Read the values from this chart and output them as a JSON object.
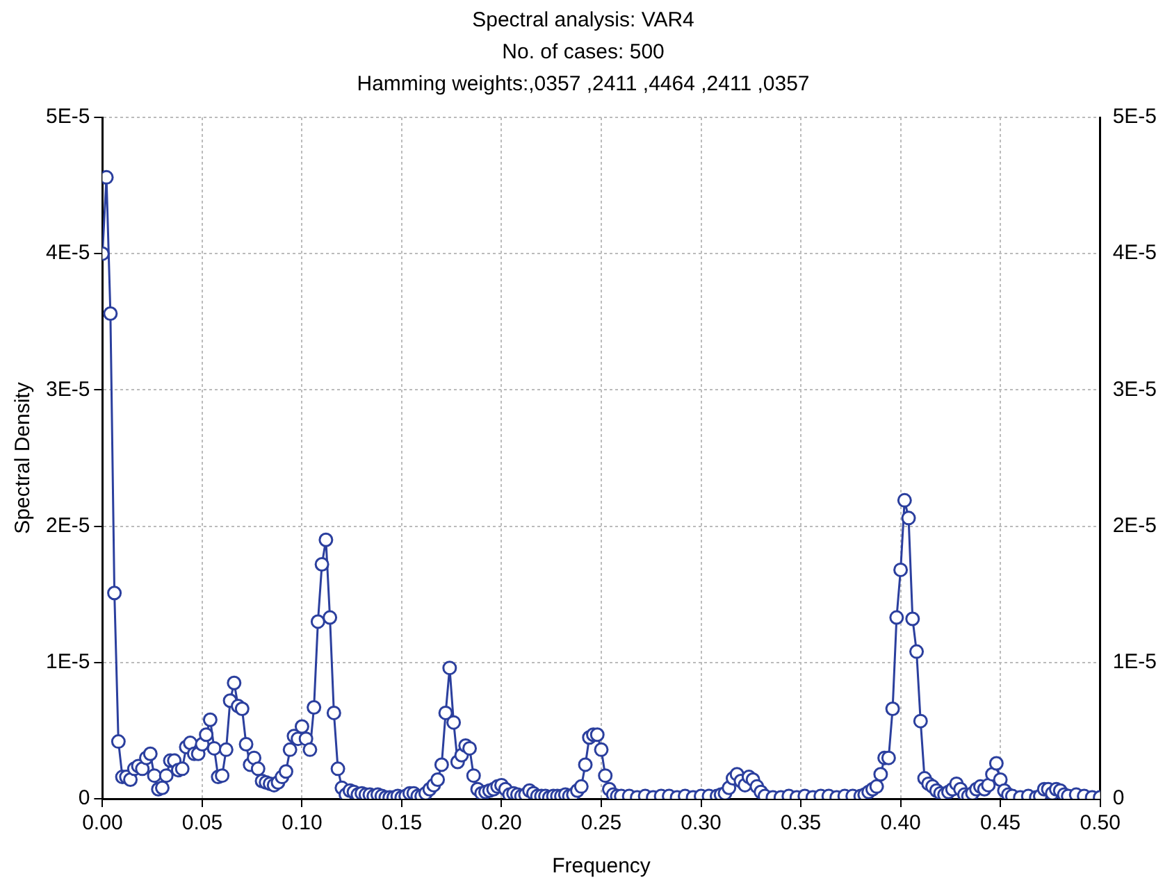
{
  "chart_data": {
    "type": "line",
    "title": "Spectral analysis: VAR4",
    "subtitle": "No. of cases: 500",
    "annotations": [
      "Hamming weights:,0357 ,2411 ,4464 ,2411 ,0357"
    ],
    "xlabel": "Frequency",
    "ylabel": "Spectral Density",
    "xlim": [
      0,
      0.5
    ],
    "xticks": [
      {
        "value": 0,
        "label": "0.00"
      },
      {
        "value": 0.05,
        "label": "0.05"
      },
      {
        "value": 0.1,
        "label": "0.10"
      },
      {
        "value": 0.15,
        "label": "0.15"
      },
      {
        "value": 0.2,
        "label": "0.20"
      },
      {
        "value": 0.25,
        "label": "0.25"
      },
      {
        "value": 0.3,
        "label": "0.30"
      },
      {
        "value": 0.35,
        "label": "0.35"
      },
      {
        "value": 0.4,
        "label": "0.40"
      },
      {
        "value": 0.45,
        "label": "0.45"
      },
      {
        "value": 0.5,
        "label": "0.50"
      }
    ],
    "ylim": [
      0,
      5e-05
    ],
    "yticks": [
      0,
      {
        "value": 1e-05,
        "label": "1E-5"
      },
      {
        "value": 2e-05,
        "label": "2E-5"
      },
      {
        "value": 3e-05,
        "label": "3E-5"
      },
      {
        "value": 4e-05,
        "label": "4E-5"
      },
      {
        "value": 5e-05,
        "label": "5E-5"
      }
    ],
    "y2lim": [
      0,
      5e-05
    ],
    "y2ticks": [
      0,
      {
        "value": 1e-05,
        "label": "1E-5"
      },
      {
        "value": 2e-05,
        "label": "2E-5"
      },
      {
        "value": 3e-05,
        "label": "3E-5"
      },
      {
        "value": 4e-05,
        "label": "4E-5"
      },
      {
        "value": 5e-05,
        "label": "5E-5"
      }
    ],
    "grid": true,
    "legend": false,
    "marker": "circle",
    "line_style": "solid",
    "series": [
      {
        "color": "#2b3f9e",
        "x": [
          0,
          0.002,
          0.004,
          0.006,
          0.008,
          0.01,
          0.012,
          0.014,
          0.016,
          0.018,
          0.02,
          0.022,
          0.024,
          0.026,
          0.028,
          0.03,
          0.032,
          0.034,
          0.036,
          0.038,
          0.04,
          0.042,
          0.044,
          0.046,
          0.048,
          0.05,
          0.052,
          0.054,
          0.056,
          0.058,
          0.06,
          0.062,
          0.064,
          0.066,
          0.068,
          0.07,
          0.072,
          0.074,
          0.076,
          0.078,
          0.08,
          0.082,
          0.084,
          0.086,
          0.088,
          0.09,
          0.092,
          0.094,
          0.096,
          0.098,
          0.1,
          0.102,
          0.104,
          0.106,
          0.108,
          0.11,
          0.112,
          0.114,
          0.116,
          0.118,
          0.12,
          0.122,
          0.124,
          0.126,
          0.128,
          0.13,
          0.132,
          0.134,
          0.136,
          0.138,
          0.14,
          0.142,
          0.144,
          0.146,
          0.148,
          0.15,
          0.152,
          0.154,
          0.156,
          0.158,
          0.16,
          0.162,
          0.164,
          0.166,
          0.168,
          0.17,
          0.172,
          0.174,
          0.176,
          0.178,
          0.18,
          0.182,
          0.184,
          0.186,
          0.188,
          0.19,
          0.192,
          0.194,
          0.196,
          0.198,
          0.2,
          0.202,
          0.204,
          0.206,
          0.208,
          0.21,
          0.212,
          0.214,
          0.216,
          0.218,
          0.22,
          0.222,
          0.224,
          0.226,
          0.228,
          0.23,
          0.232,
          0.234,
          0.236,
          0.238,
          0.24,
          0.242,
          0.244,
          0.246,
          0.248,
          0.25,
          0.252,
          0.254,
          0.256,
          0.258,
          0.26,
          0.264,
          0.268,
          0.272,
          0.276,
          0.28,
          0.284,
          0.288,
          0.292,
          0.296,
          0.3,
          0.304,
          0.308,
          0.31,
          0.312,
          0.314,
          0.316,
          0.318,
          0.32,
          0.322,
          0.324,
          0.326,
          0.328,
          0.33,
          0.332,
          0.336,
          0.34,
          0.344,
          0.348,
          0.352,
          0.356,
          0.36,
          0.364,
          0.368,
          0.372,
          0.376,
          0.38,
          0.382,
          0.384,
          0.386,
          0.388,
          0.39,
          0.392,
          0.394,
          0.396,
          0.398,
          0.4,
          0.402,
          0.404,
          0.406,
          0.408,
          0.41,
          0.412,
          0.414,
          0.416,
          0.418,
          0.42,
          0.422,
          0.424,
          0.426,
          0.428,
          0.43,
          0.432,
          0.434,
          0.436,
          0.438,
          0.44,
          0.442,
          0.444,
          0.446,
          0.448,
          0.45,
          0.452,
          0.454,
          0.456,
          0.46,
          0.464,
          0.468,
          0.47,
          0.472,
          0.474,
          0.476,
          0.478,
          0.48,
          0.482,
          0.484,
          0.488,
          0.492,
          0.496,
          0.5
        ],
        "values": [
          4e-05,
          4.56e-05,
          3.56e-05,
          1.51e-05,
          4.2e-06,
          1.6e-06,
          1.6e-06,
          1.4e-06,
          2.2e-06,
          2.4e-06,
          2.2e-06,
          3e-06,
          3.3e-06,
          1.7e-06,
          7e-07,
          8e-07,
          1.7e-06,
          2.8e-06,
          2.8e-06,
          2.1e-06,
          2.2e-06,
          3.8e-06,
          4.1e-06,
          3.3e-06,
          3.3e-06,
          4e-06,
          4.7e-06,
          5.8e-06,
          3.7e-06,
          1.6e-06,
          1.7e-06,
          3.6e-06,
          7.2e-06,
          8.5e-06,
          6.8e-06,
          6.6e-06,
          4e-06,
          2.5e-06,
          3e-06,
          2.2e-06,
          1.3e-06,
          1.2e-06,
          1.1e-06,
          1e-06,
          1.2e-06,
          1.6e-06,
          2e-06,
          3.6e-06,
          4.6e-06,
          4.4e-06,
          5.3e-06,
          4.4e-06,
          3.6e-06,
          6.7e-06,
          1.3e-05,
          1.72e-05,
          1.9e-05,
          1.33e-05,
          6.3e-06,
          2.2e-06,
          8e-07,
          3e-07,
          6e-07,
          5e-07,
          3e-07,
          4e-07,
          3e-07,
          3e-07,
          2e-07,
          3e-07,
          2e-07,
          1e-07,
          1e-07,
          1e-07,
          2e-07,
          1e-07,
          2e-07,
          4e-07,
          4e-07,
          2e-07,
          2e-07,
          4e-07,
          7e-07,
          1e-06,
          1.4e-06,
          2.5e-06,
          6.3e-06,
          9.6e-06,
          5.6e-06,
          2.7e-06,
          3.2e-06,
          3.9e-06,
          3.7e-06,
          1.7e-06,
          7e-07,
          4e-07,
          5e-07,
          6e-07,
          7e-07,
          9e-07,
          1e-06,
          7e-07,
          3e-07,
          4e-07,
          3e-07,
          2e-07,
          3e-07,
          6e-07,
          4e-07,
          2e-07,
          2e-07,
          2e-07,
          1e-07,
          2e-07,
          2e-07,
          2e-07,
          3e-07,
          2e-07,
          3e-07,
          6e-07,
          9e-07,
          2.5e-06,
          4.5e-06,
          4.7e-06,
          4.7e-06,
          3.6e-06,
          1.7e-06,
          7e-07,
          3e-07,
          2e-07,
          2e-07,
          2e-07,
          1e-07,
          2e-07,
          1e-07,
          2e-07,
          2e-07,
          1e-07,
          2e-07,
          1e-07,
          2e-07,
          2e-07,
          2e-07,
          3e-07,
          4e-07,
          8e-07,
          1.5e-06,
          1.8e-06,
          1.3e-06,
          1e-06,
          1.6e-06,
          1.4e-06,
          9e-07,
          5e-07,
          2e-07,
          1e-07,
          1e-07,
          2e-07,
          1e-07,
          2e-07,
          1e-07,
          2e-07,
          2e-07,
          1e-07,
          2e-07,
          2e-07,
          2e-07,
          3e-07,
          5e-07,
          7e-07,
          9e-07,
          1.8e-06,
          3e-06,
          3e-06,
          6.6e-06,
          1.33e-05,
          1.68e-05,
          2.19e-05,
          2.06e-05,
          1.32e-05,
          1.08e-05,
          5.7e-06,
          1.5e-06,
          1.1e-06,
          9e-07,
          6e-07,
          4e-07,
          3e-07,
          5e-07,
          7e-07,
          1.1e-06,
          7e-07,
          3e-07,
          2e-07,
          4e-07,
          7e-07,
          9e-07,
          7e-07,
          1e-06,
          1.8e-06,
          2.6e-06,
          1.4e-06,
          6e-07,
          3e-07,
          2e-07,
          1e-07,
          2e-07,
          1e-07,
          2e-07,
          7e-07,
          7e-07,
          4e-07,
          7e-07,
          6e-07,
          3e-07,
          2e-07,
          3e-07,
          2e-07,
          1e-07,
          1e-07
        ]
      }
    ]
  }
}
